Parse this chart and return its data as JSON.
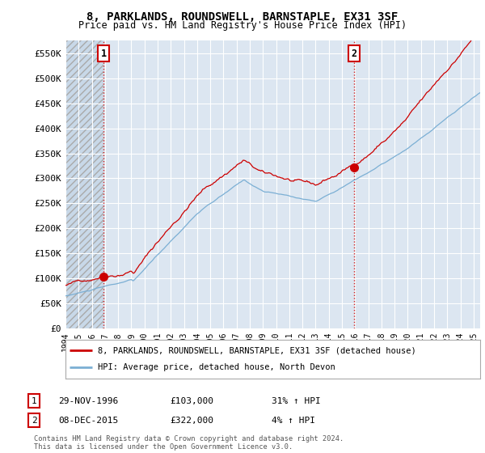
{
  "title_line1": "8, PARKLANDS, ROUNDSWELL, BARNSTAPLE, EX31 3SF",
  "title_line2": "Price paid vs. HM Land Registry's House Price Index (HPI)",
  "ylim": [
    0,
    575000
  ],
  "yticks": [
    0,
    50000,
    100000,
    150000,
    200000,
    250000,
    300000,
    350000,
    400000,
    450000,
    500000,
    550000
  ],
  "ytick_labels": [
    "£0",
    "£50K",
    "£100K",
    "£150K",
    "£200K",
    "£250K",
    "£300K",
    "£350K",
    "£400K",
    "£450K",
    "£500K",
    "£550K"
  ],
  "background_color": "#ffffff",
  "plot_bg_color": "#dce6f1",
  "hatch_bg_color": "#c8d8e8",
  "grid_color": "#ffffff",
  "sale1_date": 1996.91,
  "sale1_price": 103000,
  "sale2_date": 2015.93,
  "sale2_price": 322000,
  "sale1_label": "1",
  "sale2_label": "2",
  "marker_color": "#cc0000",
  "vline_color": "#cc0000",
  "hpi_line_color": "#7bafd4",
  "price_line_color": "#cc0000",
  "legend_house": "8, PARKLANDS, ROUNDSWELL, BARNSTAPLE, EX31 3SF (detached house)",
  "legend_hpi": "HPI: Average price, detached house, North Devon",
  "annotation1_date": "29-NOV-1996",
  "annotation1_price": "£103,000",
  "annotation1_hpi": "31% ↑ HPI",
  "annotation2_date": "08-DEC-2015",
  "annotation2_price": "£322,000",
  "annotation2_hpi": "4% ↑ HPI",
  "footer": "Contains HM Land Registry data © Crown copyright and database right 2024.\nThis data is licensed under the Open Government Licence v3.0.",
  "xmin": 1994.0,
  "xmax": 2025.5,
  "xtick_years": [
    1994,
    1995,
    1996,
    1997,
    1998,
    1999,
    2000,
    2001,
    2002,
    2003,
    2004,
    2005,
    2006,
    2007,
    2008,
    2009,
    2010,
    2011,
    2012,
    2013,
    2014,
    2015,
    2016,
    2017,
    2018,
    2019,
    2020,
    2021,
    2022,
    2023,
    2024,
    2025
  ]
}
